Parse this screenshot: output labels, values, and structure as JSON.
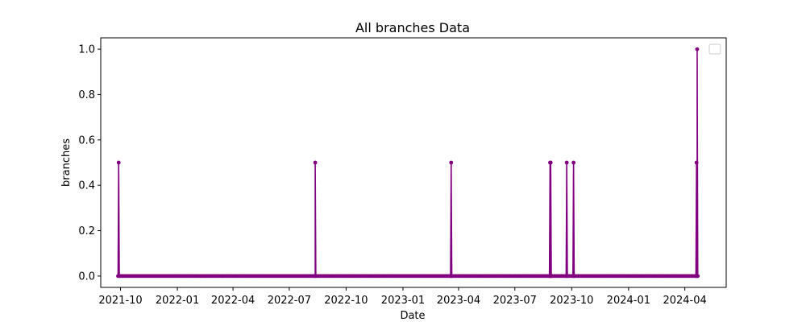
{
  "chart_data": {
    "type": "line",
    "title": "All branches Data",
    "xlabel": "Date",
    "ylabel": "branches",
    "x_axis_type": "date",
    "xlim": [
      "2021-08-30",
      "2024-06-07"
    ],
    "ylim": [
      -0.05,
      1.05
    ],
    "x_ticks": [
      "2021-10",
      "2022-01",
      "2022-04",
      "2022-07",
      "2022-10",
      "2023-01",
      "2023-04",
      "2023-07",
      "2023-10",
      "2024-01",
      "2024-04"
    ],
    "y_ticks": [
      "0.0",
      "0.2",
      "0.4",
      "0.6",
      "0.8",
      "1.0"
    ],
    "grid": false,
    "legend": {
      "placement": "top-right",
      "entries": []
    },
    "series": [
      {
        "color": "#800080",
        "marker": "circle",
        "baseline_value": 0,
        "baseline_start": "2021-10-01",
        "baseline_end": "2024-04-18",
        "baseline_step_days": 3,
        "points": [
          {
            "x": "2021-09-28",
            "y": 0.5
          },
          {
            "x": "2022-08-12",
            "y": 0.5
          },
          {
            "x": "2023-03-20",
            "y": 0.5
          },
          {
            "x": "2023-08-27",
            "y": 0.5
          },
          {
            "x": "2023-08-28",
            "y": 0.5
          },
          {
            "x": "2023-09-23",
            "y": 0.5
          },
          {
            "x": "2023-10-04",
            "y": 0.5
          },
          {
            "x": "2024-04-20",
            "y": 0.5
          },
          {
            "x": "2024-04-21",
            "y": 1.0
          }
        ]
      }
    ]
  }
}
